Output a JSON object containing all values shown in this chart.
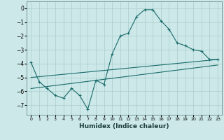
{
  "xlabel": "Humidex (Indice chaleur)",
  "ylabel": "",
  "background_color": "#cce8e8",
  "grid_color": "#aacccc",
  "line_color": "#1a6b6b",
  "xlim": [
    -0.5,
    23.5
  ],
  "ylim": [
    -7.7,
    0.5
  ],
  "yticks": [
    0,
    -1,
    -2,
    -3,
    -4,
    -5,
    -6,
    -7
  ],
  "xticks": [
    0,
    1,
    2,
    3,
    4,
    5,
    6,
    7,
    8,
    9,
    10,
    11,
    12,
    13,
    14,
    15,
    16,
    17,
    18,
    19,
    20,
    21,
    22,
    23
  ],
  "line1_x": [
    0,
    1,
    2,
    3,
    4,
    5,
    6,
    7,
    8,
    9,
    10,
    11,
    12,
    13,
    14,
    15,
    16,
    17,
    18,
    19,
    20,
    21,
    22,
    23
  ],
  "line1_y": [
    -3.9,
    -5.3,
    -5.8,
    -6.3,
    -6.5,
    -5.8,
    -6.3,
    -7.3,
    -5.2,
    -5.5,
    -3.3,
    -2.0,
    -1.8,
    -0.6,
    -0.1,
    -0.1,
    -0.9,
    -1.5,
    -2.5,
    -2.7,
    -3.0,
    -3.1,
    -3.7,
    -3.7
  ],
  "line2_x": [
    0,
    23
  ],
  "line2_y": [
    -5.0,
    -3.7
  ],
  "line3_x": [
    0,
    23
  ],
  "line3_y": [
    -5.8,
    -4.1
  ],
  "figsize": [
    3.2,
    2.0
  ],
  "dpi": 100
}
